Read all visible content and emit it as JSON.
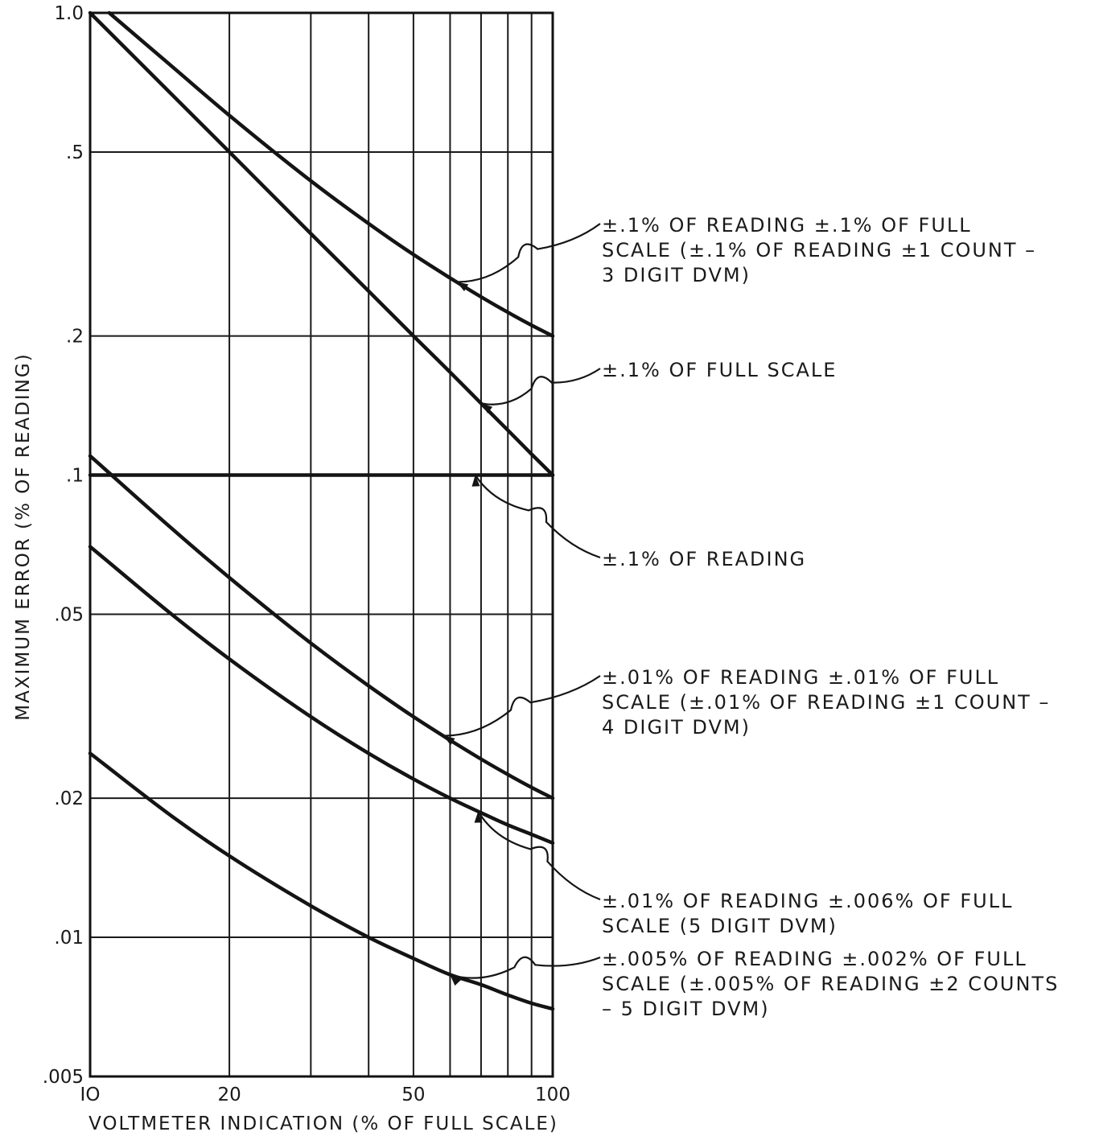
{
  "chart_data": {
    "type": "line",
    "xlabel": "VOLTMETER INDICATION (% OF FULL SCALE)",
    "ylabel": "MAXIMUM ERROR (% OF READING)",
    "xscale": "log",
    "yscale": "log",
    "xlim": [
      10,
      100
    ],
    "ylim": [
      0.005,
      1.0
    ],
    "x_ticks": [
      10,
      20,
      50,
      100
    ],
    "x_tick_labels": [
      "IO",
      "20",
      "50",
      "100"
    ],
    "x_gridlines": [
      10,
      20,
      30,
      40,
      50,
      60,
      70,
      80,
      90,
      100
    ],
    "y_ticks": [
      0.005,
      0.01,
      0.02,
      0.05,
      0.1,
      0.2,
      0.5,
      1.0
    ],
    "y_tick_labels": [
      ".005",
      ".01",
      ".02",
      ".05",
      ".1",
      ".2",
      ".5",
      "1.0"
    ],
    "grid": true,
    "legend": "none",
    "series": [
      {
        "x": [
          11,
          15,
          20,
          30,
          40,
          50,
          60,
          70,
          80,
          90,
          100
        ],
        "y": [
          1.0,
          0.767,
          0.6,
          0.433,
          0.35,
          0.3,
          0.267,
          0.243,
          0.225,
          0.211,
          0.2
        ],
        "label_lines": [
          "±.1% OF READING ±.1% OF FULL",
          "SCALE (±.1% OF READING ±1 COUNT –",
          "3 DIGIT DVM)"
        ],
        "pointer_at": 62
      },
      {
        "x": [
          10,
          20,
          30,
          40,
          50,
          60,
          70,
          80,
          90,
          100
        ],
        "y": [
          1.0,
          0.5,
          0.333,
          0.25,
          0.2,
          0.167,
          0.143,
          0.125,
          0.111,
          0.1
        ],
        "label_lines": [
          "±.1% OF FULL SCALE"
        ],
        "pointer_at": 70
      },
      {
        "x": [
          10,
          100
        ],
        "y": [
          0.1,
          0.1
        ],
        "label_lines": [
          "±.1% OF READING"
        ],
        "pointer_at": 68
      },
      {
        "x": [
          10,
          15,
          20,
          30,
          40,
          50,
          60,
          70,
          80,
          90,
          100
        ],
        "y": [
          0.11,
          0.0767,
          0.06,
          0.0433,
          0.035,
          0.03,
          0.0267,
          0.0243,
          0.0225,
          0.0211,
          0.02
        ],
        "label_lines": [
          "±.01% OF READING ±.01% OF FULL",
          "SCALE (±.01% OF READING ±1 COUNT –",
          "4 DIGIT DVM)"
        ],
        "pointer_at": 58
      },
      {
        "x": [
          10,
          15,
          20,
          30,
          40,
          50,
          60,
          70,
          80,
          90,
          100
        ],
        "y": [
          0.07,
          0.05,
          0.04,
          0.03,
          0.025,
          0.022,
          0.02,
          0.0186,
          0.0175,
          0.0167,
          0.016
        ],
        "label_lines": [
          "±.01% OF READING ±.006% OF FULL",
          "SCALE (5 DIGIT DVM)"
        ],
        "pointer_at": 69
      },
      {
        "x": [
          10,
          15,
          20,
          30,
          40,
          50,
          60,
          70,
          80,
          90,
          100
        ],
        "y": [
          0.025,
          0.0183,
          0.015,
          0.0117,
          0.01,
          0.009,
          0.0083,
          0.0079,
          0.0075,
          0.0072,
          0.007
        ],
        "label_lines": [
          "±.005% OF READING ±.002% OF FULL",
          "SCALE (±.005% OF READING ±2 COUNTS",
          "– 5 DIGIT DVM)"
        ],
        "pointer_at": 60
      }
    ]
  }
}
